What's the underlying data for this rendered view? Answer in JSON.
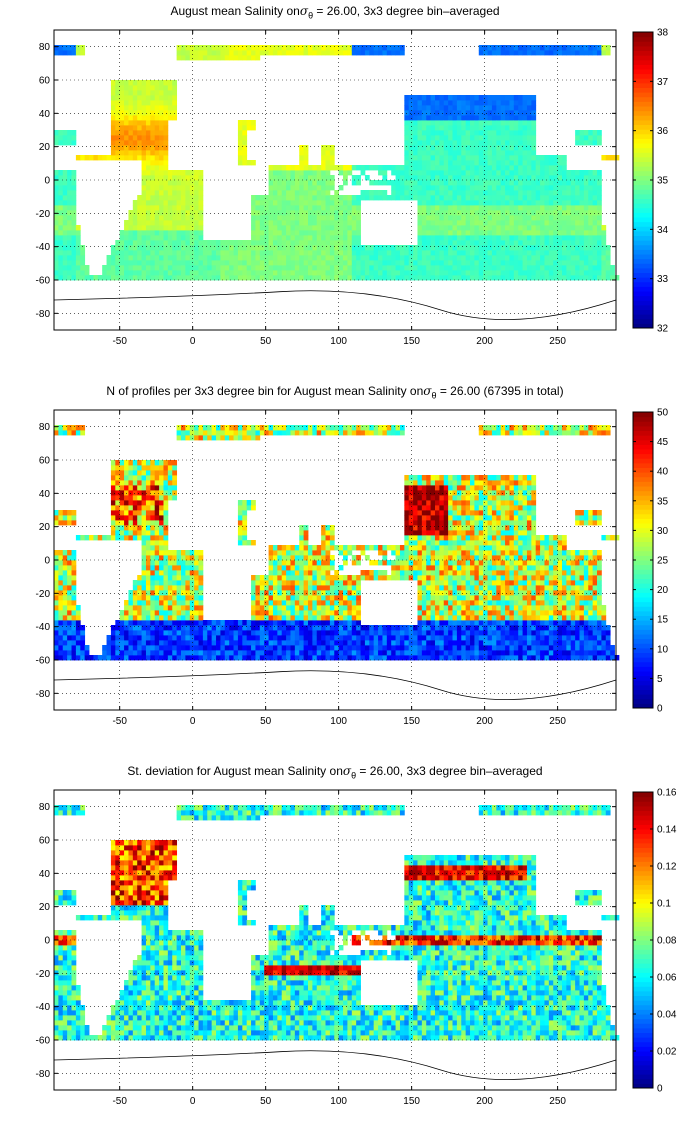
{
  "chart_data": [
    {
      "type": "heatmap",
      "title_prefix": "August mean Salinity on",
      "title_sigma": "σ",
      "title_sub": "θ",
      "title_suffix": " = 26.00, 3x3 degree bin–averaged",
      "xlim": [
        -95,
        290
      ],
      "ylim": [
        -90,
        90
      ],
      "xticks": [
        -50,
        0,
        50,
        100,
        150,
        200,
        250
      ],
      "yticks": [
        -80,
        -60,
        -40,
        -20,
        0,
        20,
        40,
        60,
        80
      ],
      "colorbar": {
        "min": 32,
        "max": 38,
        "ticks": [
          32,
          33,
          34,
          35,
          36,
          37,
          38
        ]
      },
      "grid": "dotted",
      "legend": "colorbar-right",
      "field": "salinity",
      "bin_size_deg": 3
    },
    {
      "type": "heatmap",
      "title_prefix": "N of profiles per 3x3 degree bin for August mean Salinity on",
      "title_sigma": "σ",
      "title_sub": "θ",
      "title_suffix": " = 26.00 (67395 in total)",
      "xlim": [
        -95,
        290
      ],
      "ylim": [
        -90,
        90
      ],
      "xticks": [
        -50,
        0,
        50,
        100,
        150,
        200,
        250
      ],
      "yticks": [
        -80,
        -60,
        -40,
        -20,
        0,
        20,
        40,
        60,
        80
      ],
      "colorbar": {
        "min": 0,
        "max": 50,
        "ticks": [
          0,
          5,
          10,
          15,
          20,
          25,
          30,
          35,
          40,
          45,
          50
        ]
      },
      "grid": "dotted",
      "legend": "colorbar-right",
      "field": "count",
      "total_profiles": 67395,
      "bin_size_deg": 3
    },
    {
      "type": "heatmap",
      "title_prefix": "St. deviation for August mean Salinity on",
      "title_sigma": "σ",
      "title_sub": "θ",
      "title_suffix": " = 26.00, 3x3 degree bin–averaged",
      "xlim": [
        -95,
        290
      ],
      "ylim": [
        -90,
        90
      ],
      "xticks": [
        -50,
        0,
        50,
        100,
        150,
        200,
        250
      ],
      "yticks": [
        -80,
        -60,
        -40,
        -20,
        0,
        20,
        40,
        60,
        80
      ],
      "colorbar": {
        "min": 0,
        "max": 0.16,
        "ticks": [
          0,
          0.02,
          0.04,
          0.06,
          0.08,
          0.1,
          0.12,
          0.14,
          0.16
        ]
      },
      "grid": "dotted",
      "legend": "colorbar-right",
      "field": "stdev",
      "bin_size_deg": 3
    }
  ]
}
